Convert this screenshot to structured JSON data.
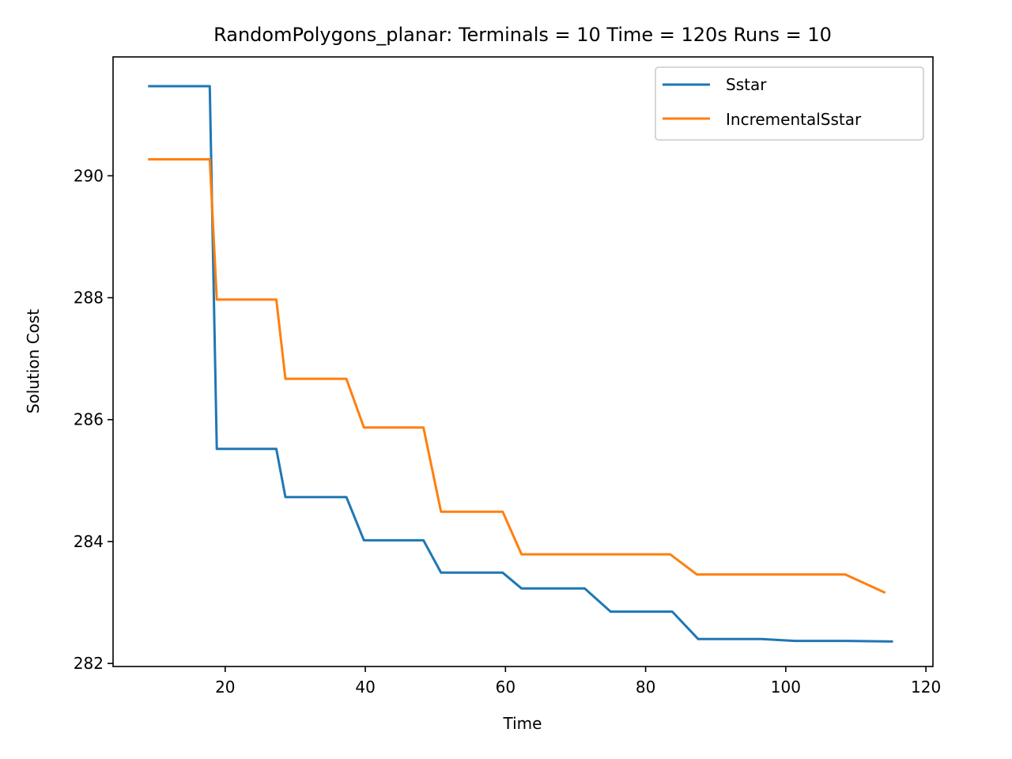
{
  "chart_data": {
    "type": "line",
    "title": "RandomPolygons_planar:  Terminals = 10  Time = 120s  Runs = 10",
    "xlabel": "Time",
    "ylabel": "Solution Cost",
    "xlim": [
      4,
      121
    ],
    "ylim": [
      281.95,
      291.95
    ],
    "xticks": [
      20,
      40,
      60,
      80,
      100,
      120
    ],
    "yticks": [
      282,
      284,
      286,
      288,
      290
    ],
    "grid": false,
    "legend_position": "upper right",
    "series": [
      {
        "name": "Sstar",
        "color": "#1f77b4",
        "x": [
          9,
          17.8,
          18.8,
          27.3,
          28.6,
          37.3,
          39.8,
          48.3,
          50.8,
          59.6,
          62.3,
          71.3,
          75.0,
          83.8,
          87.5,
          96.5,
          101.3,
          108.5,
          115.3
        ],
        "y": [
          291.47,
          291.47,
          285.52,
          285.52,
          284.73,
          284.73,
          284.02,
          284.02,
          283.49,
          283.49,
          283.23,
          283.23,
          282.85,
          282.85,
          282.4,
          282.4,
          282.37,
          282.37,
          282.36
        ]
      },
      {
        "name": "IncrementalSstar",
        "color": "#ff7f0e",
        "x": [
          9,
          17.8,
          18.8,
          27.3,
          28.6,
          37.3,
          39.8,
          48.3,
          50.8,
          59.6,
          62.3,
          71.3,
          75.0,
          83.5,
          87.3,
          96.5,
          101.3,
          108.5,
          114.2
        ],
        "y": [
          290.27,
          290.27,
          287.97,
          287.97,
          286.67,
          286.67,
          285.87,
          285.87,
          284.49,
          284.49,
          283.79,
          283.79,
          283.79,
          283.79,
          283.46,
          283.46,
          283.46,
          283.46,
          283.16
        ]
      }
    ]
  }
}
